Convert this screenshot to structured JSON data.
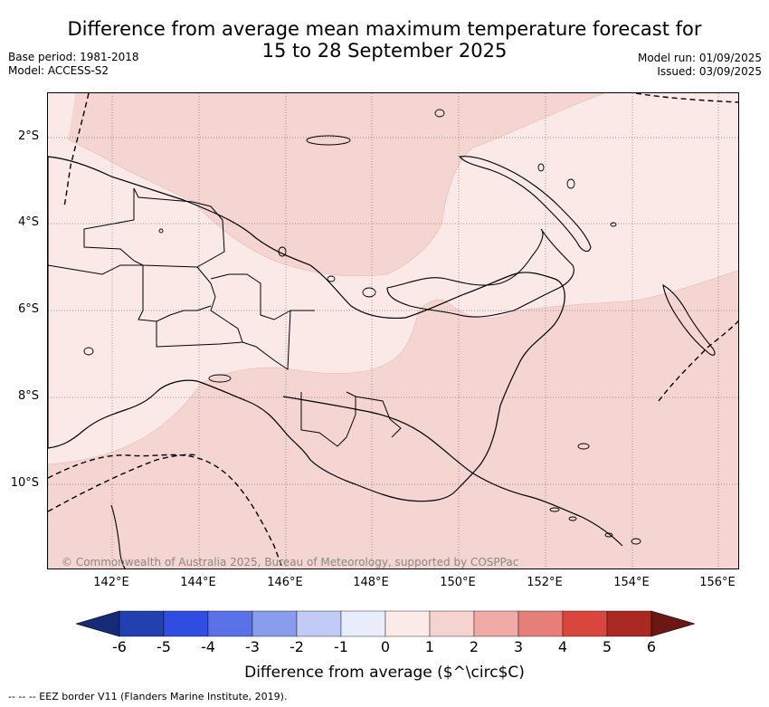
{
  "title": {
    "line1": "Difference from average mean maximum temperature forecast for",
    "line2": "15 to 28 September 2025"
  },
  "meta": {
    "base_period": "Base period: 1981-2018",
    "model": "Model: ACCESS-S2",
    "model_run": "Model run: 01/09/2025",
    "issued": "Issued: 03/09/2025"
  },
  "axes": {
    "lat_labels": [
      "2°S",
      "4°S",
      "6°S",
      "8°S",
      "10°S"
    ],
    "lon_labels": [
      "142°E",
      "144°E",
      "146°E",
      "148°E",
      "150°E",
      "152°E",
      "154°E",
      "156°E"
    ]
  },
  "copyright": "© Commonwealth of Australia 2025, Bureau of Meteorology, supported by COSPPac",
  "colorbar": {
    "ticks": [
      "-6",
      "-5",
      "-4",
      "-3",
      "-2",
      "-1",
      "0",
      "1",
      "2",
      "3",
      "4",
      "5",
      "6"
    ],
    "colors": [
      "#162a78",
      "#2340b0",
      "#2f4de0",
      "#5a72e8",
      "#8a9cee",
      "#c2cbf6",
      "#e9edfb",
      "#fdebe9",
      "#f5d3d0",
      "#f0aba7",
      "#e57f78",
      "#d9463d",
      "#aa2822",
      "#6d1714"
    ],
    "label": "Difference from average ($^\\circ$C)"
  },
  "legend": {
    "eez": "--  --  -- EEZ border V11 (Flanders Marine Institute, 2019)."
  },
  "map_colors": {
    "light_anomaly": "#fbe9e8",
    "medium_anomaly": "#f5d5d2"
  }
}
